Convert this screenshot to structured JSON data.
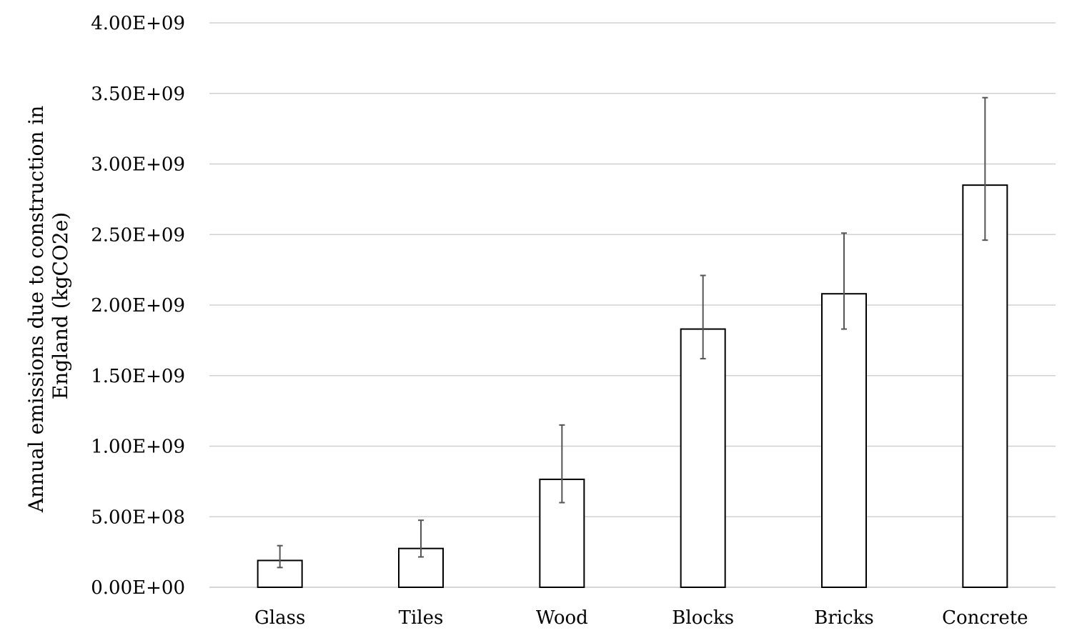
{
  "chart_data": {
    "type": "bar",
    "title": "",
    "xlabel": "",
    "ylabel_lines": [
      "Annual emissions due to construction in",
      "England (kgCO2e)"
    ],
    "categories": [
      "Glass",
      "Tiles",
      "Wood",
      "Blocks",
      "Bricks",
      "Concrete"
    ],
    "values": [
      190000000,
      275000000,
      765000000,
      1830000000,
      2080000000,
      2850000000
    ],
    "error_low": [
      140000000,
      215000000,
      600000000,
      1620000000,
      1830000000,
      2460000000
    ],
    "error_high": [
      295000000,
      475000000,
      1150000000,
      2210000000,
      2510000000,
      3470000000
    ],
    "ylim": [
      0,
      4000000000
    ],
    "yticks": [
      0,
      500000000,
      1000000000,
      1500000000,
      2000000000,
      2500000000,
      3000000000,
      3500000000,
      4000000000
    ],
    "ytick_labels": [
      "0.00E+00",
      "5.00E+08",
      "1.00E+09",
      "1.50E+09",
      "2.00E+09",
      "2.50E+09",
      "3.00E+09",
      "3.50E+09",
      "4.00E+09"
    ],
    "grid": true,
    "legend": "none",
    "colors": {
      "bar_fill": "#ffffff",
      "bar_stroke": "#000000",
      "error_bar": "#555555",
      "grid": "#d0d0d0"
    }
  }
}
